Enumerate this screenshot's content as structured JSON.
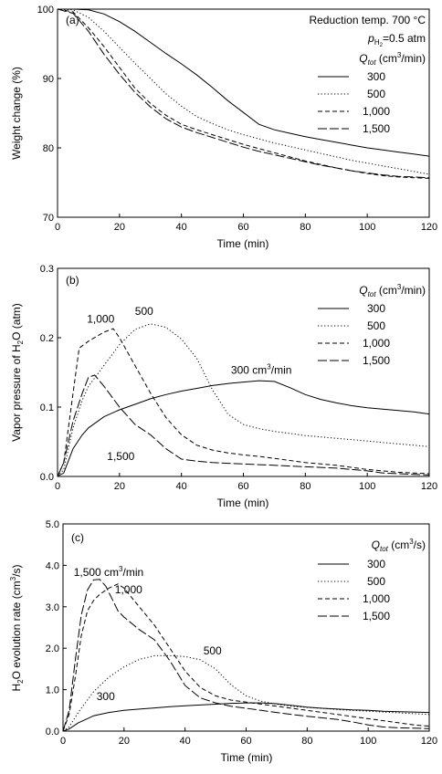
{
  "chart_data": [
    {
      "type": "line",
      "panel_label": "(a)",
      "xlabel": "Time (min)",
      "ylabel": "Weight change (%)",
      "xlim": [
        0,
        120
      ],
      "ylim": [
        70,
        100
      ],
      "xticks": [
        0,
        20,
        40,
        60,
        80,
        100,
        120
      ],
      "yticks": [
        70,
        80,
        90,
        100
      ],
      "tick_labels_x": [
        "0",
        "20",
        "40",
        "60",
        "80",
        "100",
        "120"
      ],
      "tick_labels_y": [
        "70",
        "80",
        "90",
        "100"
      ],
      "grid": false,
      "legend_position": "top-right",
      "conditions": [
        "Reduction temp. 700 °C",
        "pH2=0.5 atm"
      ],
      "legend_title": "Qtot (cm3/min)",
      "series": [
        {
          "name": "300",
          "dash": "solid",
          "x": [
            0,
            5,
            10,
            15,
            20,
            25,
            30,
            35,
            40,
            45,
            50,
            55,
            60,
            65,
            70,
            75,
            80,
            85,
            90,
            95,
            100,
            105,
            110,
            115,
            120
          ],
          "y": [
            100,
            100,
            99.9,
            99.3,
            98.2,
            96.8,
            95.2,
            93.6,
            92.1,
            90.5,
            88.7,
            86.8,
            85.1,
            83.4,
            82.6,
            82.1,
            81.6,
            81.2,
            80.8,
            80.4,
            80.0,
            79.7,
            79.4,
            79.1,
            78.8
          ]
        },
        {
          "name": "500",
          "dash": "dot",
          "x": [
            0,
            5,
            10,
            15,
            20,
            25,
            30,
            35,
            40,
            45,
            50,
            55,
            60,
            65,
            70,
            75,
            80,
            85,
            90,
            95,
            100,
            105,
            110,
            115,
            120
          ],
          "y": [
            100,
            99.9,
            98.8,
            96.8,
            94.5,
            92.2,
            90.0,
            87.8,
            86.0,
            84.5,
            83.5,
            82.6,
            81.9,
            81.3,
            80.7,
            80.2,
            79.7,
            79.2,
            78.7,
            78.2,
            77.8,
            77.4,
            77.0,
            76.6,
            76.2
          ]
        },
        {
          "name": "1,000",
          "dash": "dash",
          "x": [
            0,
            5,
            10,
            15,
            20,
            25,
            30,
            35,
            40,
            45,
            50,
            55,
            60,
            65,
            70,
            75,
            80,
            85,
            90,
            95,
            100,
            105,
            110,
            115,
            120
          ],
          "y": [
            100,
            99.6,
            97.3,
            94.6,
            91.6,
            88.6,
            86.4,
            84.7,
            83.4,
            82.6,
            81.9,
            81.2,
            80.5,
            79.9,
            79.3,
            78.7,
            78.1,
            77.6,
            77.1,
            76.7,
            76.3,
            76.0,
            75.8,
            75.7,
            75.6
          ]
        },
        {
          "name": "1,500",
          "dash": "longdash",
          "x": [
            0,
            5,
            10,
            15,
            20,
            25,
            30,
            35,
            40,
            45,
            50,
            55,
            60,
            65,
            70,
            75,
            80,
            85,
            90,
            95,
            100,
            105,
            110,
            115,
            120
          ],
          "y": [
            100,
            99.4,
            96.8,
            93.5,
            90.6,
            88.0,
            85.9,
            84.2,
            83.0,
            82.2,
            81.5,
            80.8,
            80.1,
            79.5,
            79.0,
            78.5,
            78.0,
            77.5,
            77.1,
            76.7,
            76.4,
            76.1,
            75.9,
            75.8,
            75.7
          ]
        }
      ]
    },
    {
      "type": "line",
      "panel_label": "(b)",
      "xlabel": "Time (min)",
      "ylabel": "Vapor pressure of H2O (atm)",
      "xlim": [
        0,
        120
      ],
      "ylim": [
        0,
        0.3
      ],
      "xticks": [
        0,
        20,
        40,
        60,
        80,
        100,
        120
      ],
      "yticks": [
        0,
        0.1,
        0.2,
        0.3
      ],
      "tick_labels_x": [
        "0",
        "20",
        "40",
        "60",
        "80",
        "100",
        "120"
      ],
      "tick_labels_y": [
        "0.0",
        "0.1",
        "0.2",
        "0.3"
      ],
      "grid": false,
      "legend_position": "top-right",
      "legend_title": "Qtot (cm3/min)",
      "annotations": [
        {
          "text": "1,000",
          "x": 9.5,
          "y": 0.222
        },
        {
          "text": "500",
          "x": 25,
          "y": 0.233
        },
        {
          "text": "300 cm3/min",
          "x": 56,
          "y": 0.148
        },
        {
          "text": "1,500",
          "x": 16,
          "y": 0.024
        }
      ],
      "series": [
        {
          "name": "300",
          "dash": "solid",
          "x": [
            0,
            2,
            5,
            8,
            10,
            15,
            20,
            25,
            30,
            35,
            40,
            45,
            50,
            55,
            60,
            65,
            70,
            75,
            80,
            85,
            90,
            95,
            100,
            105,
            110,
            115,
            120
          ],
          "y": [
            0,
            0.005,
            0.04,
            0.06,
            0.07,
            0.086,
            0.096,
            0.104,
            0.112,
            0.118,
            0.123,
            0.127,
            0.131,
            0.134,
            0.136,
            0.138,
            0.137,
            0.128,
            0.118,
            0.111,
            0.106,
            0.102,
            0.099,
            0.097,
            0.095,
            0.093,
            0.09
          ]
        },
        {
          "name": "500",
          "dash": "dot",
          "x": [
            0,
            2,
            5,
            8,
            10,
            15,
            20,
            25,
            30,
            35,
            40,
            45,
            50,
            55,
            60,
            65,
            70,
            75,
            80,
            85,
            90,
            95,
            100,
            105,
            110,
            115,
            120
          ],
          "y": [
            0,
            0.01,
            0.07,
            0.11,
            0.13,
            0.16,
            0.19,
            0.212,
            0.22,
            0.215,
            0.198,
            0.17,
            0.125,
            0.09,
            0.075,
            0.069,
            0.065,
            0.062,
            0.059,
            0.057,
            0.055,
            0.053,
            0.051,
            0.049,
            0.047,
            0.045,
            0.043
          ]
        },
        {
          "name": "1,000",
          "dash": "dash",
          "x": [
            0,
            2,
            5,
            7,
            10,
            15,
            18,
            20,
            25,
            30,
            35,
            40,
            45,
            50,
            55,
            60,
            65,
            70,
            75,
            80,
            85,
            90,
            95,
            100,
            105,
            110,
            115,
            120
          ],
          "y": [
            0,
            0.02,
            0.12,
            0.185,
            0.195,
            0.208,
            0.213,
            0.2,
            0.16,
            0.12,
            0.085,
            0.06,
            0.045,
            0.038,
            0.034,
            0.031,
            0.029,
            0.026,
            0.023,
            0.02,
            0.018,
            0.016,
            0.013,
            0.01,
            0.008,
            0.006,
            0.005,
            0.004
          ]
        },
        {
          "name": "1,500",
          "dash": "longdash",
          "x": [
            0,
            2,
            5,
            8,
            10,
            12,
            15,
            20,
            25,
            30,
            35,
            40,
            45,
            50,
            55,
            60,
            65,
            70,
            75,
            80,
            85,
            90,
            95,
            100,
            105,
            110,
            115,
            120
          ],
          "y": [
            0,
            0.02,
            0.08,
            0.12,
            0.143,
            0.146,
            0.13,
            0.1,
            0.075,
            0.06,
            0.04,
            0.025,
            0.022,
            0.02,
            0.019,
            0.018,
            0.017,
            0.016,
            0.015,
            0.014,
            0.013,
            0.012,
            0.01,
            0.008,
            0.005,
            0.004,
            0.003,
            0.002
          ]
        }
      ]
    },
    {
      "type": "line",
      "panel_label": "(c)",
      "xlabel": "Time (min)",
      "ylabel": "H2O evolution rate (cm3/s)",
      "xlim": [
        0,
        120
      ],
      "ylim": [
        0,
        5.0
      ],
      "xticks": [
        0,
        20,
        40,
        60,
        80,
        100,
        120
      ],
      "yticks": [
        0,
        1,
        2,
        3,
        4,
        5
      ],
      "tick_labels_x": [
        "0",
        "20",
        "40",
        "60",
        "80",
        "100",
        "120"
      ],
      "tick_labels_y": [
        "0.0",
        "1.0",
        "2.0",
        "3.0",
        "4.0",
        "5.0"
      ],
      "grid": false,
      "legend_position": "top-right",
      "legend_title": "Qtot (cm3/s)",
      "annotations": [
        {
          "text": "1,500 cm3/min",
          "x": 3.5,
          "y": 3.75
        },
        {
          "text": "1,000",
          "x": 17,
          "y": 3.33
        },
        {
          "text": "500",
          "x": 46,
          "y": 1.85
        },
        {
          "text": "300",
          "x": 11,
          "y": 0.75
        }
      ],
      "series": [
        {
          "name": "300",
          "dash": "solid",
          "x": [
            0,
            2,
            5,
            8,
            10,
            15,
            20,
            25,
            30,
            35,
            40,
            45,
            50,
            55,
            60,
            65,
            70,
            75,
            80,
            85,
            90,
            95,
            100,
            105,
            110,
            115,
            120
          ],
          "y": [
            0,
            0.05,
            0.2,
            0.3,
            0.37,
            0.45,
            0.5,
            0.53,
            0.56,
            0.59,
            0.61,
            0.63,
            0.65,
            0.67,
            0.68,
            0.68,
            0.66,
            0.62,
            0.58,
            0.55,
            0.53,
            0.51,
            0.5,
            0.48,
            0.47,
            0.46,
            0.45
          ]
        },
        {
          "name": "500",
          "dash": "dot",
          "x": [
            0,
            2,
            5,
            8,
            10,
            15,
            20,
            25,
            30,
            35,
            40,
            45,
            50,
            55,
            60,
            65,
            70,
            75,
            80,
            85,
            90,
            95,
            100,
            105,
            110,
            115,
            120
          ],
          "y": [
            0,
            0.1,
            0.45,
            0.75,
            0.95,
            1.3,
            1.55,
            1.73,
            1.82,
            1.82,
            1.8,
            1.72,
            1.5,
            1.12,
            0.85,
            0.72,
            0.65,
            0.6,
            0.57,
            0.55,
            0.52,
            0.5,
            0.48,
            0.46,
            0.44,
            0.42,
            0.4
          ]
        },
        {
          "name": "1,000",
          "dash": "dash",
          "x": [
            0,
            2,
            4,
            6,
            8,
            10,
            12,
            15,
            18,
            20,
            25,
            30,
            35,
            40,
            45,
            50,
            55,
            60,
            65,
            70,
            75,
            80,
            85,
            90,
            95,
            100,
            105,
            110,
            115,
            120
          ],
          "y": [
            0,
            0.4,
            1.3,
            2.3,
            2.9,
            3.15,
            3.3,
            3.45,
            3.55,
            3.45,
            3.0,
            2.55,
            2.0,
            1.45,
            1.05,
            0.85,
            0.75,
            0.7,
            0.65,
            0.6,
            0.55,
            0.5,
            0.45,
            0.4,
            0.35,
            0.3,
            0.25,
            0.2,
            0.15,
            0.12
          ]
        },
        {
          "name": "1,500",
          "dash": "longdash",
          "x": [
            0,
            2,
            4,
            6,
            8,
            10,
            12,
            14,
            16,
            18,
            20,
            25,
            30,
            35,
            40,
            45,
            50,
            55,
            60,
            65,
            70,
            75,
            80,
            85,
            90,
            95,
            100,
            105,
            110,
            115,
            120
          ],
          "y": [
            0,
            0.5,
            1.7,
            2.8,
            3.4,
            3.65,
            3.66,
            3.5,
            3.2,
            2.9,
            2.75,
            2.45,
            2.2,
            1.7,
            1.1,
            0.8,
            0.68,
            0.6,
            0.55,
            0.5,
            0.45,
            0.4,
            0.36,
            0.32,
            0.28,
            0.22,
            0.15,
            0.1,
            0.08,
            0.07,
            0.06
          ]
        }
      ]
    }
  ]
}
